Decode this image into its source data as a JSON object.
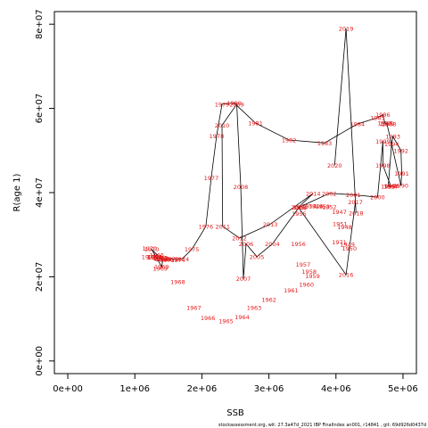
{
  "chart_data": {
    "type": "line",
    "xlabel": "SSB",
    "ylabel": "R(age 1)",
    "xlim": [
      -200000,
      5200000
    ],
    "ylim": [
      -3000000,
      83000000
    ],
    "x_ticks": [
      0,
      1000000,
      2000000,
      3000000,
      4000000,
      5000000
    ],
    "x_tick_labels": [
      "0e+00",
      "1e+06",
      "2e+06",
      "3e+06",
      "4e+06",
      "5e+06"
    ],
    "y_ticks": [
      0,
      20000000,
      40000000,
      60000000,
      80000000
    ],
    "y_tick_labels": [
      "0e+00",
      "2e+07",
      "4e+07",
      "6e+07",
      "8e+07"
    ],
    "line_color": "#000000",
    "label_color": "#e41a1c",
    "series": [
      {
        "points": [
          {
            "year": "1963",
            "x": 1300000,
            "y": 24800000
          },
          {
            "year": "1964",
            "x": 1300000,
            "y": 24800000
          },
          {
            "year": "1965",
            "x": 1330000,
            "y": 25200000
          },
          {
            "year": "1966",
            "x": 1400000,
            "y": 24300000
          },
          {
            "year": "1967",
            "x": 1380000,
            "y": 24400000
          },
          {
            "year": "1968",
            "x": 1420000,
            "y": 24200000
          },
          {
            "year": "1969",
            "x": 1400000,
            "y": 22400000
          },
          {
            "year": "1970",
            "x": 1250000,
            "y": 26500000
          },
          {
            "year": "1971",
            "x": 1380000,
            "y": 24500000
          },
          {
            "year": "1972",
            "x": 1450000,
            "y": 24200000
          },
          {
            "year": "1973",
            "x": 1550000,
            "y": 24200000
          },
          {
            "year": "1974",
            "x": 1700000,
            "y": 24200000
          },
          {
            "year": "1975",
            "x": 1850000,
            "y": 26500000
          },
          {
            "year": "1976",
            "x": 2060000,
            "y": 32000000
          },
          {
            "year": "1977",
            "x": 2140000,
            "y": 43500000
          },
          {
            "year": "1978",
            "x": 2220000,
            "y": 53500000
          },
          {
            "year": "1979",
            "x": 2300000,
            "y": 61000000
          },
          {
            "year": "1980",
            "x": 2480000,
            "y": 61300000
          },
          {
            "year": "1981",
            "x": 2800000,
            "y": 56500000
          },
          {
            "year": "1982",
            "x": 3300000,
            "y": 52500000
          },
          {
            "year": "1983",
            "x": 3830000,
            "y": 51800000
          },
          {
            "year": "1984",
            "x": 4320000,
            "y": 56300000
          },
          {
            "year": "1985",
            "x": 4620000,
            "y": 57800000
          },
          {
            "year": "1986",
            "x": 4700000,
            "y": 58500000
          },
          {
            "year": "1987",
            "x": 4730000,
            "y": 56500000
          },
          {
            "year": "1988",
            "x": 4790000,
            "y": 56300000
          },
          {
            "year": "1989",
            "x": 4760000,
            "y": 56400000
          },
          {
            "year": "1990",
            "x": 4970000,
            "y": 41700000
          },
          {
            "year": "1991",
            "x": 4980000,
            "y": 44600000
          },
          {
            "year": "1992",
            "x": 4970000,
            "y": 50000000
          },
          {
            "year": "1993",
            "x": 4850000,
            "y": 53300000
          },
          {
            "year": "1994",
            "x": 4830000,
            "y": 51500000
          },
          {
            "year": "1995",
            "x": 4780000,
            "y": 41500000
          },
          {
            "year": "1996",
            "x": 4830000,
            "y": 41600000
          },
          {
            "year": "1997",
            "x": 4820000,
            "y": 41500000
          },
          {
            "year": "1998",
            "x": 4700000,
            "y": 46500000
          },
          {
            "year": "1999",
            "x": 4700000,
            "y": 52200000
          },
          {
            "year": "2000",
            "x": 4620000,
            "y": 38900000
          },
          {
            "year": "2001",
            "x": 4260000,
            "y": 39500000
          },
          {
            "year": "2002",
            "x": 3900000,
            "y": 39800000
          },
          {
            "year": "2003",
            "x": 3450000,
            "y": 36500000
          },
          {
            "year": "2004",
            "x": 3050000,
            "y": 27800000
          },
          {
            "year": "2005",
            "x": 2820000,
            "y": 24800000
          },
          {
            "year": "2006",
            "x": 2660000,
            "y": 27800000
          },
          {
            "year": "2007",
            "x": 2620000,
            "y": 19600000
          },
          {
            "year": "2008",
            "x": 2580000,
            "y": 41400000
          },
          {
            "year": "2009",
            "x": 2520000,
            "y": 61000000
          },
          {
            "year": "2010",
            "x": 2300000,
            "y": 56000000
          },
          {
            "year": "2011",
            "x": 2310000,
            "y": 32000000
          },
          {
            "year": "2012",
            "x": 2560000,
            "y": 29200000
          },
          {
            "year": "2013",
            "x": 3020000,
            "y": 32500000
          },
          {
            "year": "2014",
            "x": 3660000,
            "y": 39800000
          },
          {
            "year": "2015",
            "x": 3440000,
            "y": 36500000
          },
          {
            "year": "2016",
            "x": 4150000,
            "y": 20500000
          },
          {
            "year": "2017",
            "x": 4290000,
            "y": 37800000
          },
          {
            "year": "2018",
            "x": 4300000,
            "y": 35100000
          },
          {
            "year": "2019",
            "x": 4150000,
            "y": 79000000
          },
          {
            "year": "2020",
            "x": 3980000,
            "y": 46500000
          }
        ]
      }
    ],
    "extra_labels": [
      {
        "text": "1955",
        "x": 3450000,
        "y": 35000000
      },
      {
        "text": "1956",
        "x": 3440000,
        "y": 27800000
      },
      {
        "text": "1957",
        "x": 3510000,
        "y": 22900000
      },
      {
        "text": "1958",
        "x": 3600000,
        "y": 21300000
      },
      {
        "text": "1959",
        "x": 3650000,
        "y": 20200000
      },
      {
        "text": "1960",
        "x": 3560000,
        "y": 18200000
      },
      {
        "text": "1961",
        "x": 3330000,
        "y": 16800000
      },
      {
        "text": "1962",
        "x": 3000000,
        "y": 14600000
      },
      {
        "text": "1963",
        "x": 2780000,
        "y": 12700000
      },
      {
        "text": "1964",
        "x": 2600000,
        "y": 10500000
      },
      {
        "text": "1965",
        "x": 2360000,
        "y": 9500000
      },
      {
        "text": "1966",
        "x": 2090000,
        "y": 10200000
      },
      {
        "text": "1967",
        "x": 1880000,
        "y": 12700000
      },
      {
        "text": "1968",
        "x": 1640000,
        "y": 18800000
      },
      {
        "text": "1969",
        "x": 1380000,
        "y": 22000000
      },
      {
        "text": "1970",
        "x": 1220000,
        "y": 26800000
      },
      {
        "text": "1971",
        "x": 1210000,
        "y": 24800000
      },
      {
        "text": "1972",
        "x": 1290000,
        "y": 24600000
      },
      {
        "text": "1946",
        "x": 3700000,
        "y": 36800000
      },
      {
        "text": "1947",
        "x": 4050000,
        "y": 35400000
      },
      {
        "text": "1948",
        "x": 4130000,
        "y": 31800000
      },
      {
        "text": "1949",
        "x": 4170000,
        "y": 27700000
      },
      {
        "text": "1950",
        "x": 4200000,
        "y": 26800000
      },
      {
        "text": "1951",
        "x": 4060000,
        "y": 32600000
      },
      {
        "text": "1952",
        "x": 3900000,
        "y": 36600000
      },
      {
        "text": "1953",
        "x": 3800000,
        "y": 36700000
      },
      {
        "text": "1954",
        "x": 3600000,
        "y": 36800000
      },
      {
        "text": "1955",
        "x": 3470000,
        "y": 36500000
      },
      {
        "text": "1971",
        "x": 4050000,
        "y": 28200000
      },
      {
        "text": "1973",
        "x": 1480000,
        "y": 24000000
      },
      {
        "text": "1974",
        "x": 1640000,
        "y": 24000000
      }
    ],
    "footer_text": "stockassessment.org, wit: 27.3a47d_2021 IBP FinalIndex an001, r14841 , git: 69d926d0437d"
  }
}
